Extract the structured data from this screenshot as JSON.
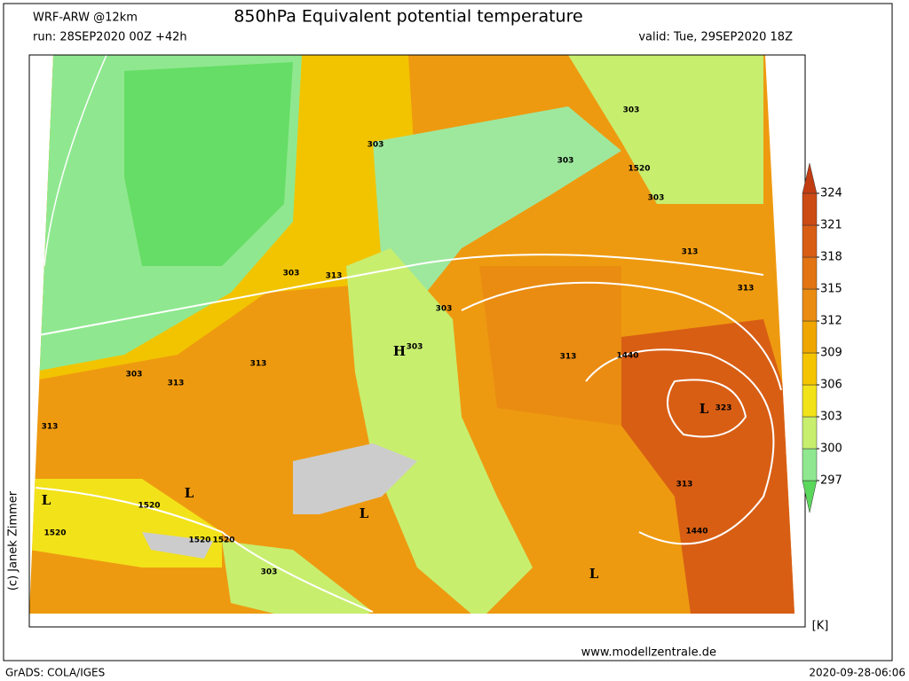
{
  "header": {
    "model": "WRF-ARW @12km",
    "title": "850hPa Equivalent potential temperature",
    "run": "run: 28SEP2020 00Z +42h",
    "valid": "valid: Tue, 29SEP2020 18Z"
  },
  "credit": "(c) Janek Zimmer",
  "map_labels": [
    "303",
    "303",
    "303",
    "303",
    "303",
    "303",
    "303",
    "303",
    "303",
    "313",
    "313",
    "313",
    "313",
    "313",
    "313",
    "313",
    "313",
    "1520",
    "1520",
    "1520",
    "1520",
    "1520",
    "1440",
    "1440",
    "323",
    "H",
    "L",
    "L",
    "L",
    "L",
    "L"
  ],
  "colorbar": {
    "ticks": [
      297,
      300,
      303,
      306,
      309,
      312,
      315,
      318,
      321,
      324
    ],
    "colors": [
      "#5bd75b",
      "#8fe88f",
      "#c8ee6e",
      "#f2e21a",
      "#f5c400",
      "#f0a600",
      "#ea8c12",
      "#e27414",
      "#d85e14",
      "#cc4a14",
      "#c23c12"
    ],
    "unit": "[K]"
  },
  "footer": {
    "website": "www.modellzentrale.de",
    "software": "GrADS: COLA/IGES",
    "timestamp": "2020-09-28-06:06"
  }
}
